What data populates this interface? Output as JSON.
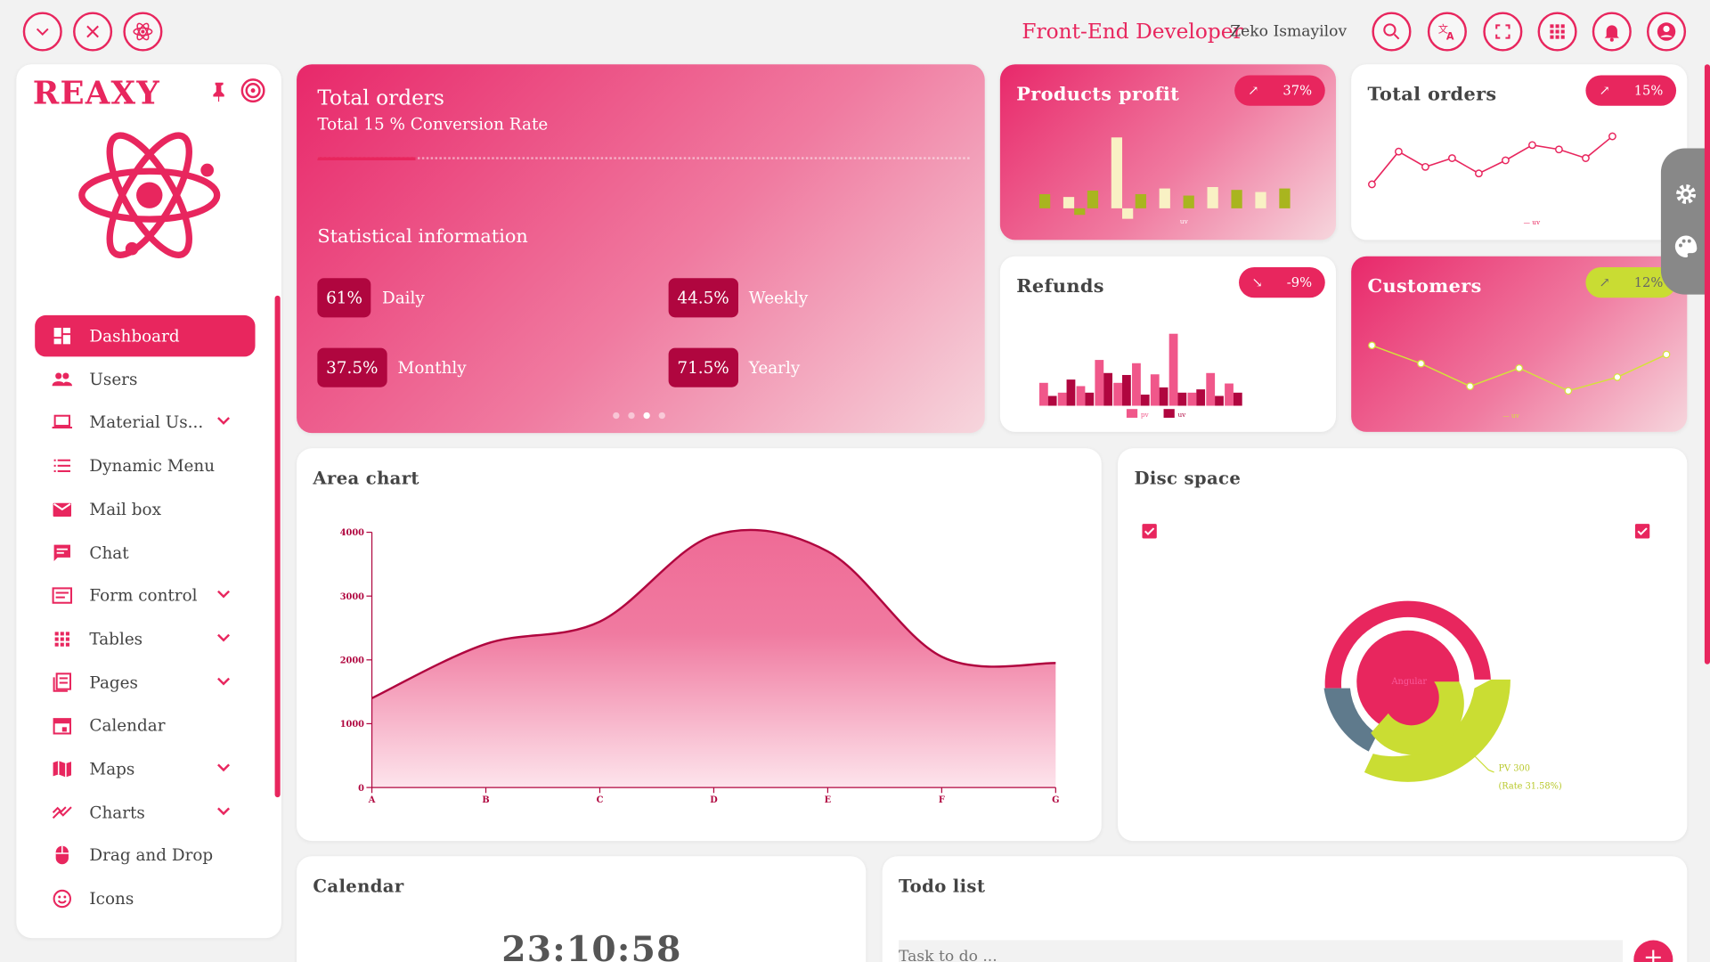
{
  "header": {
    "role": "Front-End Developer",
    "user": "Zeko Ismayilov",
    "icons": [
      "chevron-down-icon",
      "close-icon",
      "atom-icon",
      "search-icon",
      "translate-icon",
      "fullscreen-icon",
      "apps-icon",
      "bell-icon",
      "account-icon"
    ]
  },
  "sidebar": {
    "logo": "REAXY",
    "items": [
      {
        "label": "Dashboard",
        "icon": "dashboard-icon",
        "active": true
      },
      {
        "label": "Users",
        "icon": "users-icon"
      },
      {
        "label": "Material Us...",
        "icon": "laptop-icon",
        "expandable": true
      },
      {
        "label": "Dynamic Menu",
        "icon": "list-icon"
      },
      {
        "label": "Mail box",
        "icon": "mail-icon"
      },
      {
        "label": "Chat",
        "icon": "chat-icon"
      },
      {
        "label": "Form control",
        "icon": "form-icon",
        "expandable": true
      },
      {
        "label": "Tables",
        "icon": "grid-icon",
        "expandable": true
      },
      {
        "label": "Pages",
        "icon": "pages-icon",
        "expandable": true
      },
      {
        "label": "Calendar",
        "icon": "calendar-icon"
      },
      {
        "label": "Maps",
        "icon": "map-icon",
        "expandable": true
      },
      {
        "label": "Charts",
        "icon": "chart-icon",
        "expandable": true
      },
      {
        "label": "Drag and Drop",
        "icon": "mouse-icon"
      },
      {
        "label": "Icons",
        "icon": "smile-icon"
      }
    ]
  },
  "hero": {
    "title": "Total orders",
    "subtitle": "Total 15 % Conversion Rate",
    "stat_title": "Statistical information",
    "stats": [
      {
        "value": "61%",
        "label": "Daily"
      },
      {
        "value": "44.5%",
        "label": "Weekly"
      },
      {
        "value": "37.5%",
        "label": "Monthly"
      },
      {
        "value": "71.5%",
        "label": "Yearly"
      }
    ]
  },
  "mini": {
    "products_profit": {
      "title": "Products profit",
      "badge": "37%",
      "legend": "uv",
      "uv": [
        2,
        1.6,
        2.5,
        10,
        2,
        2.8,
        1.8,
        3,
        2.6,
        2.3,
        2.8
      ],
      "pv": [
        0,
        0,
        2.5,
        0,
        4,
        0,
        0,
        0,
        0,
        0,
        0
      ]
    },
    "total_orders": {
      "title": "Total orders",
      "badge": "15%",
      "legend": "uv",
      "uv": [
        40,
        55,
        48,
        52,
        45,
        51,
        58,
        56,
        52,
        62
      ]
    },
    "refunds": {
      "title": "Refunds",
      "badge": "-9%",
      "legend_pv": "pv",
      "legend_uv": "uv",
      "pv": [
        3.5,
        2,
        3,
        7,
        3.5,
        6.5,
        4.8,
        11,
        2,
        5,
        3.4
      ],
      "uv": [
        1.5,
        4,
        2,
        5,
        4.7,
        1.7,
        2.8,
        2,
        2.5,
        1.5,
        2
      ]
    },
    "customers": {
      "title": "Customers",
      "badge": "12%",
      "legend": "uv",
      "uv": [
        54,
        50,
        45,
        49,
        44,
        47,
        52
      ]
    }
  },
  "chart_data": {
    "type": "area",
    "title": "Area chart",
    "categories": [
      "A",
      "B",
      "C",
      "D",
      "E",
      "F",
      "G"
    ],
    "values": [
      1400,
      2250,
      2600,
      3950,
      3700,
      2050,
      1950
    ],
    "yticks": [
      "4000",
      "3000",
      "2000",
      "1000",
      "0"
    ],
    "ylim": [
      0,
      4000
    ]
  },
  "disc": {
    "title": "Disc space",
    "center_label": "Angular",
    "note1": "PV 300",
    "note2": "(Rate 31.58%)"
  },
  "calendar": {
    "title": "Calendar",
    "time": "23:10:58"
  },
  "todo": {
    "title": "Todo list",
    "placeholder": "Task to do ..."
  }
}
